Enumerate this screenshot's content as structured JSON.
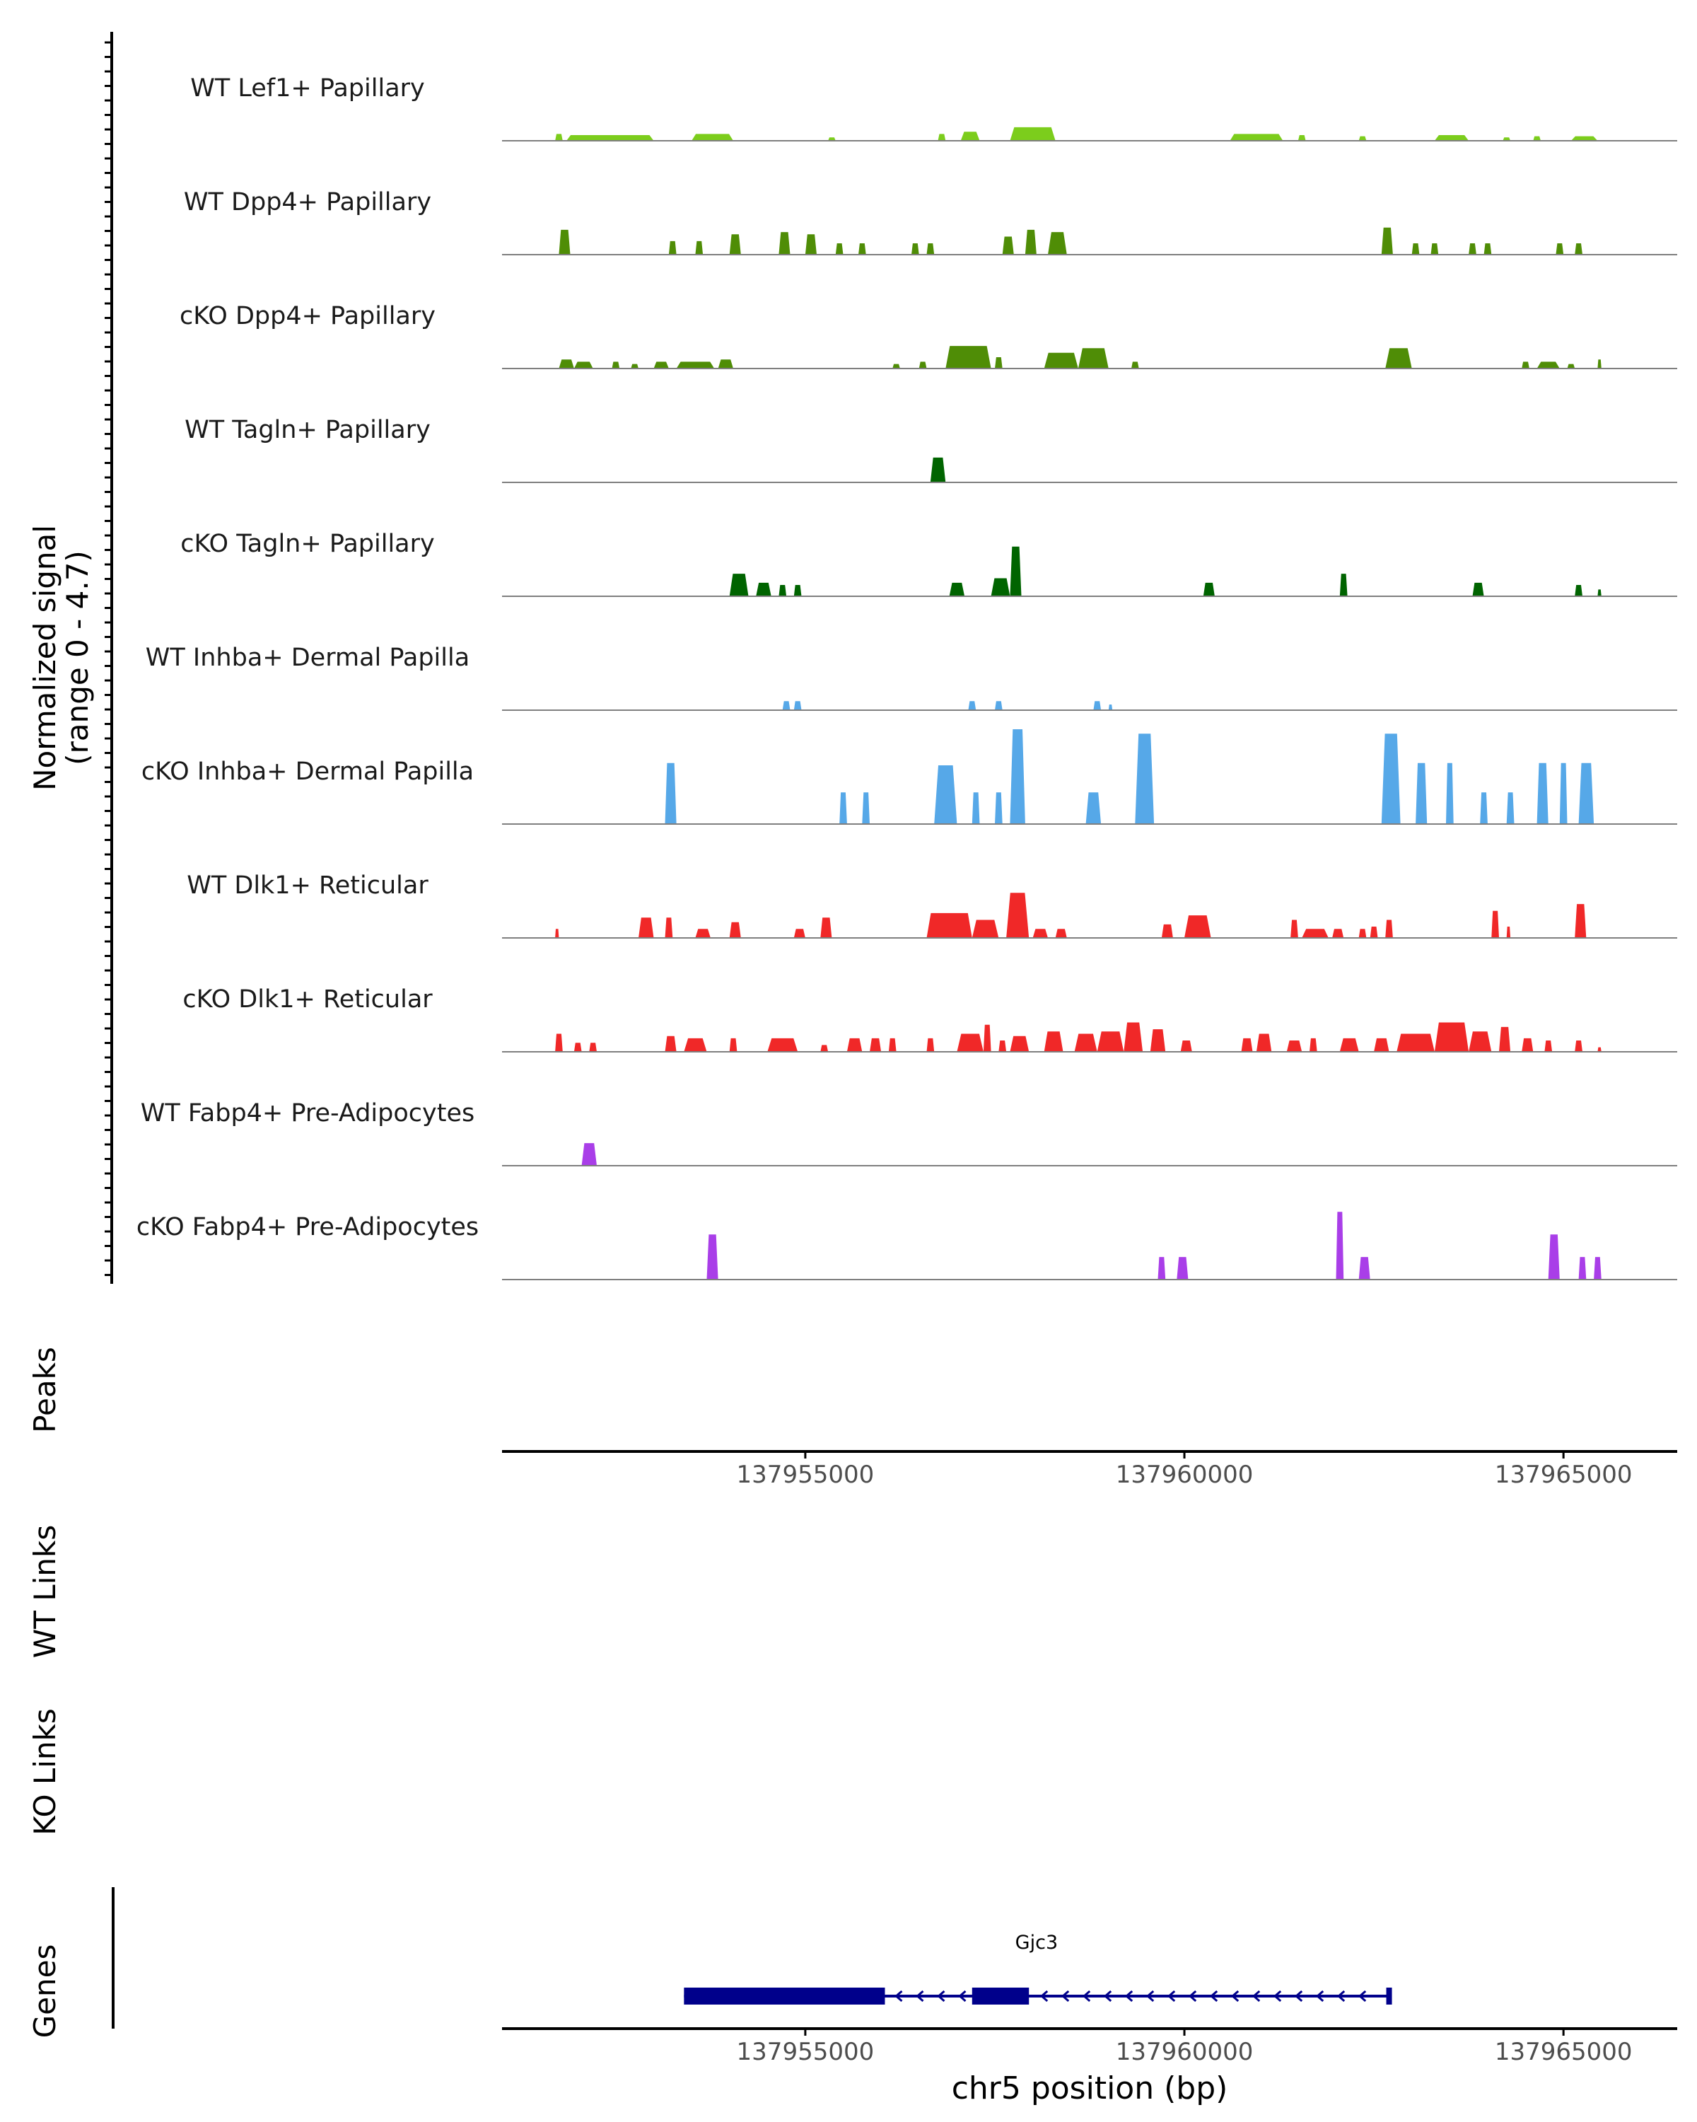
{
  "chart_data": {
    "type": "area",
    "title": "",
    "region": {
      "chrom": "chr5",
      "start": 137951000,
      "end": 137966500
    },
    "signal_ylabel": "Normalized signal",
    "signal_range_label": "(range 0 - 4.7)",
    "ylim": [
      0,
      4.7
    ],
    "tracks": [
      {
        "name": "WT Lef1+ Papillary",
        "color": "#7ccd1c",
        "peaks": [
          [
            137951700,
            137951800,
            0.3
          ],
          [
            137951850,
            137953000,
            0.25
          ],
          [
            137953500,
            137954050,
            0.3
          ],
          [
            137955300,
            137955400,
            0.15
          ],
          [
            137956750,
            137956850,
            0.3
          ],
          [
            137957050,
            137957300,
            0.4
          ],
          [
            137957700,
            137958300,
            0.6
          ],
          [
            137960600,
            137961300,
            0.3
          ],
          [
            137961500,
            137961600,
            0.25
          ],
          [
            137962300,
            137962400,
            0.2
          ],
          [
            137963300,
            137963750,
            0.25
          ],
          [
            137964200,
            137964300,
            0.15
          ],
          [
            137964600,
            137964700,
            0.2
          ],
          [
            137965100,
            137965450,
            0.2
          ]
        ]
      },
      {
        "name": "WT Dpp4+ Papillary",
        "color": "#4f8d06",
        "peaks": [
          [
            137951750,
            137951900,
            1.1
          ],
          [
            137953200,
            137953300,
            0.6
          ],
          [
            137953550,
            137953650,
            0.6
          ],
          [
            137954000,
            137954150,
            0.9
          ],
          [
            137954650,
            137954800,
            1.0
          ],
          [
            137955000,
            137955150,
            0.9
          ],
          [
            137955400,
            137955500,
            0.5
          ],
          [
            137955700,
            137955800,
            0.5
          ],
          [
            137956400,
            137956500,
            0.5
          ],
          [
            137956600,
            137956700,
            0.5
          ],
          [
            137957600,
            137957750,
            0.8
          ],
          [
            137957900,
            137958050,
            1.1
          ],
          [
            137958200,
            137958450,
            1.0
          ],
          [
            137962600,
            137962750,
            1.2
          ],
          [
            137963000,
            137963100,
            0.5
          ],
          [
            137963250,
            137963350,
            0.5
          ],
          [
            137963750,
            137963850,
            0.5
          ],
          [
            137963950,
            137964050,
            0.5
          ],
          [
            137964900,
            137965000,
            0.5
          ],
          [
            137965150,
            137965250,
            0.5
          ]
        ]
      },
      {
        "name": "cKO Dpp4+ Papillary",
        "color": "#4f8d06",
        "peaks": [
          [
            137951750,
            137951950,
            0.4
          ],
          [
            137951950,
            137952200,
            0.3
          ],
          [
            137952450,
            137952550,
            0.3
          ],
          [
            137952700,
            137952800,
            0.2
          ],
          [
            137953000,
            137953200,
            0.3
          ],
          [
            137953300,
            137953800,
            0.3
          ],
          [
            137953850,
            137954050,
            0.4
          ],
          [
            137956150,
            137956250,
            0.2
          ],
          [
            137956500,
            137956600,
            0.3
          ],
          [
            137956850,
            137957450,
            1.0
          ],
          [
            137957500,
            137957600,
            0.5
          ],
          [
            137958150,
            137958600,
            0.7
          ],
          [
            137958600,
            137959000,
            0.9
          ],
          [
            137959300,
            137959400,
            0.3
          ],
          [
            137962650,
            137963000,
            0.9
          ],
          [
            137964450,
            137964550,
            0.3
          ],
          [
            137964650,
            137964950,
            0.3
          ],
          [
            137965050,
            137965150,
            0.2
          ],
          [
            137965450,
            137965500,
            0.4
          ]
        ]
      },
      {
        "name": "WT Tagln+ Papillary",
        "color": "#006400",
        "peaks": [
          [
            137956650,
            137956850,
            1.1
          ]
        ]
      },
      {
        "name": "cKO Tagln+ Papillary",
        "color": "#006400",
        "peaks": [
          [
            137954000,
            137954250,
            1.0
          ],
          [
            137954350,
            137954550,
            0.6
          ],
          [
            137954650,
            137954750,
            0.5
          ],
          [
            137954850,
            137954950,
            0.5
          ],
          [
            137956900,
            137957100,
            0.6
          ],
          [
            137957450,
            137957700,
            0.8
          ],
          [
            137957700,
            137957850,
            2.2
          ],
          [
            137960250,
            137960400,
            0.6
          ],
          [
            137962050,
            137962150,
            1.0
          ],
          [
            137963800,
            137963950,
            0.6
          ],
          [
            137965150,
            137965250,
            0.5
          ],
          [
            137965450,
            137965500,
            0.3
          ]
        ]
      },
      {
        "name": "WT Inhba+ Dermal Papilla",
        "color": "#56a8e8",
        "peaks": [
          [
            137954700,
            137954800,
            0.4
          ],
          [
            137954850,
            137954950,
            0.4
          ],
          [
            137957150,
            137957250,
            0.4
          ],
          [
            137957500,
            137957600,
            0.4
          ],
          [
            137958800,
            137958900,
            0.4
          ],
          [
            137959000,
            137959050,
            0.25
          ]
        ]
      },
      {
        "name": "cKO Inhba+ Dermal Papilla",
        "color": "#56a8e8",
        "peaks": [
          [
            137953150,
            137953300,
            2.7
          ],
          [
            137955450,
            137955550,
            1.4
          ],
          [
            137955750,
            137955850,
            1.4
          ],
          [
            137956700,
            137957000,
            2.6
          ],
          [
            137957200,
            137957300,
            1.4
          ],
          [
            137957500,
            137957600,
            1.4
          ],
          [
            137957700,
            137957900,
            4.2
          ],
          [
            137958700,
            137958900,
            1.4
          ],
          [
            137959350,
            137959600,
            4.0
          ],
          [
            137962600,
            137962850,
            4.0
          ],
          [
            137963050,
            137963200,
            2.7
          ],
          [
            137963450,
            137963550,
            2.7
          ],
          [
            137963900,
            137964000,
            1.4
          ],
          [
            137964250,
            137964350,
            1.4
          ],
          [
            137964650,
            137964800,
            2.7
          ],
          [
            137964950,
            137965050,
            2.7
          ],
          [
            137965200,
            137965400,
            2.7
          ]
        ]
      },
      {
        "name": "WT Dlk1+ Reticular",
        "color": "#f02828",
        "peaks": [
          [
            137951700,
            137951750,
            0.4
          ],
          [
            137952800,
            137953000,
            0.9
          ],
          [
            137953150,
            137953250,
            0.9
          ],
          [
            137953550,
            137953750,
            0.4
          ],
          [
            137954000,
            137954150,
            0.7
          ],
          [
            137954850,
            137955000,
            0.4
          ],
          [
            137955200,
            137955350,
            0.9
          ],
          [
            137956600,
            137957200,
            1.1
          ],
          [
            137957200,
            137957550,
            0.8
          ],
          [
            137957650,
            137957950,
            2.0
          ],
          [
            137958000,
            137958200,
            0.4
          ],
          [
            137958300,
            137958450,
            0.4
          ],
          [
            137959700,
            137959850,
            0.6
          ],
          [
            137960000,
            137960350,
            1.0
          ],
          [
            137961400,
            137961500,
            0.8
          ],
          [
            137961550,
            137961900,
            0.4
          ],
          [
            137961950,
            137962100,
            0.4
          ],
          [
            137962300,
            137962400,
            0.4
          ],
          [
            137962450,
            137962550,
            0.5
          ],
          [
            137962650,
            137962750,
            0.8
          ],
          [
            137964050,
            137964150,
            1.2
          ],
          [
            137964250,
            137964300,
            0.5
          ],
          [
            137965150,
            137965300,
            1.5
          ]
        ]
      },
      {
        "name": "cKO Dlk1+ Reticular",
        "color": "#f02828",
        "peaks": [
          [
            137951700,
            137951800,
            0.8
          ],
          [
            137951950,
            137952050,
            0.4
          ],
          [
            137952150,
            137952250,
            0.4
          ],
          [
            137953150,
            137953300,
            0.7
          ],
          [
            137953400,
            137953700,
            0.6
          ],
          [
            137954000,
            137954100,
            0.6
          ],
          [
            137954500,
            137954900,
            0.6
          ],
          [
            137955200,
            137955300,
            0.3
          ],
          [
            137955550,
            137955750,
            0.6
          ],
          [
            137955850,
            137956000,
            0.6
          ],
          [
            137956100,
            137956200,
            0.6
          ],
          [
            137956600,
            137956700,
            0.6
          ],
          [
            137957000,
            137957350,
            0.8
          ],
          [
            137957350,
            137957450,
            1.2
          ],
          [
            137957550,
            137957650,
            0.5
          ],
          [
            137957700,
            137957950,
            0.7
          ],
          [
            137958150,
            137958400,
            0.9
          ],
          [
            137958550,
            137958850,
            0.8
          ],
          [
            137958850,
            137959200,
            0.9
          ],
          [
            137959200,
            137959450,
            1.3
          ],
          [
            137959550,
            137959750,
            1.0
          ],
          [
            137959950,
            137960100,
            0.5
          ],
          [
            137960750,
            137960900,
            0.6
          ],
          [
            137960950,
            137961150,
            0.8
          ],
          [
            137961350,
            137961550,
            0.5
          ],
          [
            137961650,
            137961750,
            0.6
          ],
          [
            137962050,
            137962300,
            0.6
          ],
          [
            137962500,
            137962700,
            0.6
          ],
          [
            137962800,
            137963300,
            0.8
          ],
          [
            137963300,
            137963750,
            1.3
          ],
          [
            137963750,
            137964050,
            0.9
          ],
          [
            137964150,
            137964300,
            1.1
          ],
          [
            137964450,
            137964600,
            0.6
          ],
          [
            137964750,
            137964850,
            0.5
          ],
          [
            137965150,
            137965250,
            0.5
          ],
          [
            137965450,
            137965500,
            0.2
          ]
        ]
      },
      {
        "name": "WT Fabp4+ Pre-Adipocytes",
        "color": "#a93ee8",
        "peaks": [
          [
            137952050,
            137952250,
            1.0
          ]
        ]
      },
      {
        "name": "cKO Fabp4+ Pre-Adipocytes",
        "color": "#a93ee8",
        "peaks": [
          [
            137953700,
            137953850,
            2.0
          ],
          [
            137959650,
            137959750,
            1.0
          ],
          [
            137959900,
            137960050,
            1.0
          ],
          [
            137962000,
            137962100,
            3.0
          ],
          [
            137962300,
            137962450,
            1.0
          ],
          [
            137964800,
            137964950,
            2.0
          ],
          [
            137965200,
            137965300,
            1.0
          ],
          [
            137965400,
            137965500,
            1.0
          ]
        ]
      }
    ],
    "panels": {
      "peaks_label": "Peaks",
      "wt_links_label": "WT Links",
      "ko_links_label": "KO Links",
      "genes_label": "Genes"
    },
    "x_ticks": [
      {
        "value": 137955000,
        "label": "137955000"
      },
      {
        "value": 137960000,
        "label": "137960000"
      },
      {
        "value": 137965000,
        "label": "137965000"
      }
    ],
    "xlabel": "chr5 position (bp)",
    "gene": {
      "name": "Gjc3",
      "strand": "-",
      "color": "#00008b",
      "start": 137953400,
      "end": 137962700,
      "exons": [
        [
          137953400,
          137956050
        ],
        [
          137957200,
          137957950
        ]
      ]
    }
  }
}
